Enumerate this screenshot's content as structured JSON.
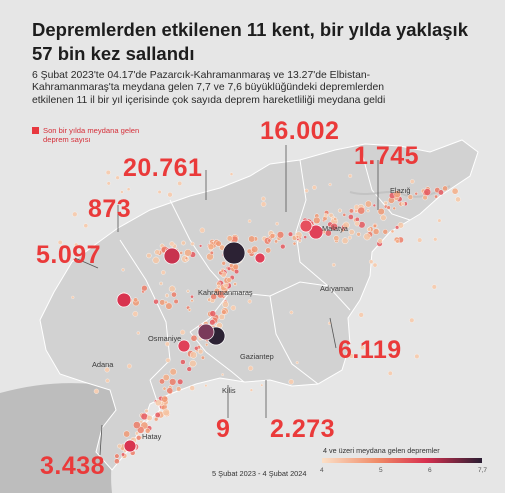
{
  "title": "Depremlerden etkilenen 11 kent, bir yılda yaklaşık 57 bin kez sallandı",
  "subtitle": "6 Şubat 2023'te 04.17'de Pazarcık-Kahramanmaraş ve 13.27'de Elbistan-Kahramanmaraş'ta meydana gelen 7,7 ve 7,6 büyüklüğündeki depremlerden etkilenen 11 il bir yıl içerisinde çok sayıda deprem hareketliliği meydana geldi",
  "legend": {
    "label": "Son bir yılda meydana gelen deprem sayısı"
  },
  "counts": {
    "adiyaman_total": "16.002",
    "kahramanmaras_total": "20.761",
    "elazig_total": "1.745",
    "osmaniye_total": "873",
    "adana_total": "5.097",
    "sanliurfa_total": "6.119",
    "hatay_total": "3.438",
    "kilis_total": "9",
    "gaziantep_total": "2.273"
  },
  "cities": {
    "elazig": "Elazığ",
    "malatya": "Malatya",
    "adiyaman": "Adıyaman",
    "kahramanmaras": "Kahramanmaraş",
    "osmaniye": "Osmaniye",
    "gaziantep": "Gaziantep",
    "adana": "Adana",
    "kilis": "Kilis",
    "hatay": "Hatay"
  },
  "scale": {
    "title": "4 ve üzeri meydana gelen depremler",
    "ticks": [
      "4",
      "5",
      "6",
      "7,7"
    ],
    "date_range": "5 Şubat 2023 - 4 Şubat 2024"
  },
  "colors": {
    "accent": "#ea3a3a",
    "low": "#f4b08a",
    "mid": "#e0435c",
    "high": "#2e2135",
    "region": "#d4d4d4",
    "sea": "#b9b9b9"
  }
}
